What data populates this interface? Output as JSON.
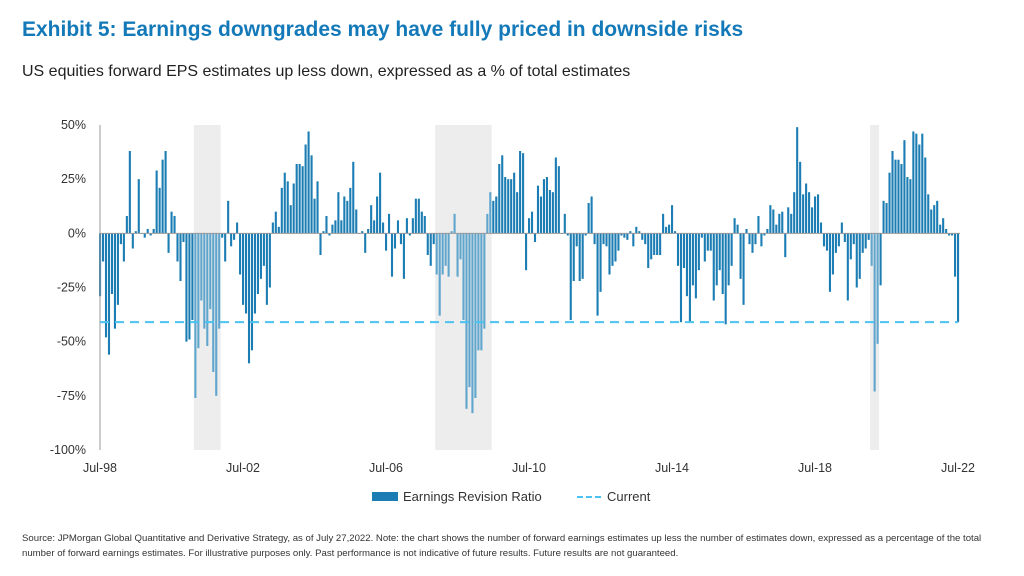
{
  "header": {
    "title": "Exhibit 5: Earnings downgrades may have fully priced in downside risks",
    "subtitle": "US equities forward EPS estimates up less down, expressed as a % of total estimates"
  },
  "chart_data": {
    "type": "bar",
    "title": "",
    "xlabel": "",
    "ylabel": "",
    "x_start": "Jul-98",
    "x_end": "Jul-22",
    "frequency": "monthly",
    "x_tick_labels": [
      "Jul-98",
      "Jul-02",
      "Jul-06",
      "Jul-10",
      "Jul-14",
      "Jul-18",
      "Jul-22"
    ],
    "y_tick_values": [
      50,
      25,
      0,
      -25,
      -50,
      -75,
      -100
    ],
    "y_tick_labels": [
      "50%",
      "25%",
      "0%",
      "-25%",
      "-50%",
      "-75%",
      "-100%"
    ],
    "ylim": [
      -100,
      50
    ],
    "grid": false,
    "legend_position": "bottom",
    "shaded_periods": [
      [
        "Mar-01",
        "Nov-01"
      ],
      [
        "Dec-07",
        "Jun-09"
      ],
      [
        "Feb-20",
        "Apr-20"
      ]
    ],
    "series": [
      {
        "name": "Earnings Revision Ratio",
        "type": "bar",
        "color": "#1b7db3",
        "shaded_color": "#5fa5cc",
        "values": [
          -29,
          -13,
          -48,
          -56,
          -28,
          -44,
          -33,
          -5,
          -13,
          8,
          38,
          -7,
          1,
          25,
          0,
          -2,
          2,
          -1,
          2,
          29,
          21,
          34,
          38,
          -9,
          10,
          8,
          -13,
          -22,
          -4,
          -50,
          -49,
          -40,
          -76,
          -53,
          -31,
          -44,
          -52,
          -35,
          -64,
          -75,
          -44,
          -2,
          -13,
          15,
          -6,
          -3,
          5,
          -19,
          -33,
          -37,
          -60,
          -54,
          -37,
          -28,
          -21,
          -15,
          -33,
          -25,
          5,
          10,
          3,
          21,
          28,
          24,
          13,
          23,
          32,
          32,
          31,
          41,
          47,
          36,
          16,
          24,
          -10,
          1,
          8,
          -1,
          4,
          6,
          19,
          6,
          17,
          15,
          21,
          33,
          11,
          0,
          1,
          -9,
          2,
          13,
          6,
          17,
          28,
          5,
          -8,
          9,
          -20,
          -7,
          6,
          -5,
          -21,
          7,
          -1,
          7,
          16,
          16,
          10,
          8,
          -10,
          -15,
          -5,
          -19,
          -38,
          -19,
          -15,
          -20,
          1,
          9,
          -20,
          -12,
          -40,
          -81,
          -71,
          -83,
          -76,
          -54,
          -54,
          -44,
          9,
          19,
          15,
          17,
          32,
          36,
          26,
          25,
          25,
          28,
          19,
          38,
          37,
          -17,
          7,
          10,
          -4,
          22,
          17,
          25,
          26,
          20,
          19,
          35,
          31,
          0,
          9,
          -1,
          -40,
          -22,
          -6,
          -22,
          -21,
          -1,
          14,
          17,
          -5,
          -38,
          -27,
          -5,
          -6,
          -19,
          -15,
          -13,
          -8,
          -1,
          -2,
          -3,
          1,
          -6,
          3,
          1,
          -3,
          -5,
          -16,
          -12,
          -10,
          -10,
          -10,
          9,
          3,
          4,
          13,
          1,
          -15,
          -41,
          -16,
          -29,
          -41,
          -24,
          -30,
          -17,
          -2,
          -13,
          -8,
          -8,
          -31,
          -24,
          -17,
          -28,
          -42,
          -24,
          -15,
          7,
          4,
          -21,
          -33,
          2,
          -5,
          -9,
          -5,
          8,
          -6,
          -1,
          2,
          13,
          11,
          4,
          9,
          10,
          -11,
          12,
          9,
          19,
          49,
          33,
          18,
          23,
          19,
          12,
          17,
          18,
          5,
          -6,
          -8,
          -27,
          -19,
          -9,
          -6,
          5,
          -4,
          -31,
          -12,
          -5,
          -25,
          -21,
          -9,
          -7,
          -3,
          -15,
          -73,
          -51,
          -24,
          15,
          14,
          28,
          38,
          34,
          34,
          32,
          43,
          26,
          25,
          47,
          46,
          41,
          46,
          35,
          18,
          11,
          13,
          15,
          4,
          7,
          2,
          -1,
          -1,
          -20,
          -41
        ]
      },
      {
        "name": "Current",
        "type": "line",
        "style": "dashed",
        "color": "#4cc2f1",
        "value": -41
      }
    ]
  },
  "legend": {
    "bar_label": "Earnings Revision Ratio",
    "line_label": "Current"
  },
  "source": "Source: JPMorgan Global Quantitative and Derivative Strategy, as of July 27,2022. Note: the chart shows the number of forward earnings estimates up less the number of estimates down, expressed as a percentage of the total number of forward earnings estimates. For illustrative purposes only. Past performance is not indicative of future results. Future results are not guaranteed."
}
